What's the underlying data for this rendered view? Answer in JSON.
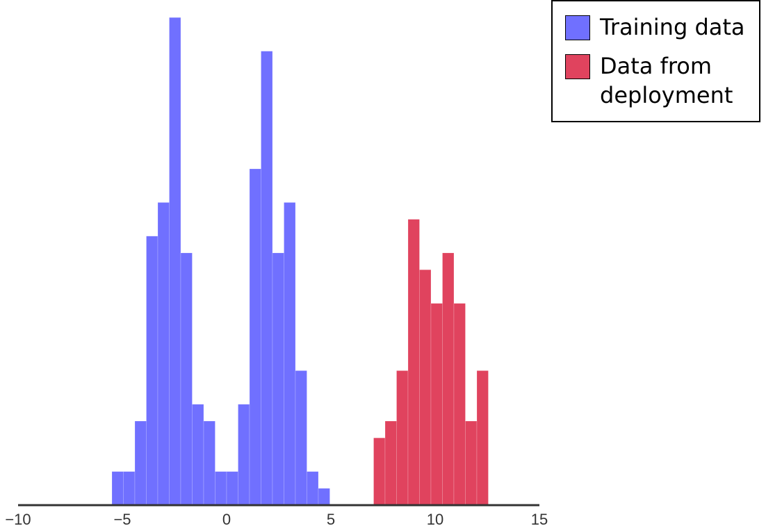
{
  "chart_data": {
    "type": "histogram",
    "xlim": [
      -10,
      15
    ],
    "xticks": [
      -10,
      -5,
      0,
      5,
      10,
      15
    ],
    "tick_labels": [
      "−10",
      "−5",
      "0",
      "5",
      "10",
      "15"
    ],
    "bin_width": 0.55,
    "grid": false,
    "y_axis_visible": false,
    "legend_position": "top-right",
    "series": [
      {
        "name": "Training data",
        "color": "#7070ff",
        "bins": [
          {
            "x0": -5.5,
            "count": 2
          },
          {
            "x0": -4.95,
            "count": 2
          },
          {
            "x0": -4.4,
            "count": 5
          },
          {
            "x0": -3.85,
            "count": 16
          },
          {
            "x0": -3.3,
            "count": 18
          },
          {
            "x0": -2.75,
            "count": 29
          },
          {
            "x0": -2.2,
            "count": 15
          },
          {
            "x0": -1.65,
            "count": 6
          },
          {
            "x0": -1.1,
            "count": 5
          },
          {
            "x0": -0.55,
            "count": 2
          },
          {
            "x0": 0.0,
            "count": 2
          },
          {
            "x0": 0.55,
            "count": 6
          },
          {
            "x0": 1.1,
            "count": 20
          },
          {
            "x0": 1.65,
            "count": 27
          },
          {
            "x0": 2.2,
            "count": 15
          },
          {
            "x0": 2.75,
            "count": 18
          },
          {
            "x0": 3.3,
            "count": 8
          },
          {
            "x0": 3.85,
            "count": 2
          },
          {
            "x0": 4.4,
            "count": 1
          }
        ]
      },
      {
        "name": "Data from deployment",
        "color": "#e0435e",
        "bins": [
          {
            "x0": 7.05,
            "count": 4
          },
          {
            "x0": 7.6,
            "count": 5
          },
          {
            "x0": 8.15,
            "count": 8
          },
          {
            "x0": 8.7,
            "count": 17
          },
          {
            "x0": 9.25,
            "count": 14
          },
          {
            "x0": 9.8,
            "count": 12
          },
          {
            "x0": 10.35,
            "count": 15
          },
          {
            "x0": 10.9,
            "count": 12
          },
          {
            "x0": 11.45,
            "count": 5
          },
          {
            "x0": 12.0,
            "count": 8
          }
        ]
      }
    ]
  },
  "legend": {
    "items": [
      {
        "label": "Training data",
        "color": "#7070ff"
      },
      {
        "label": "Data from\ndeployment",
        "color": "#e0435e"
      }
    ]
  }
}
